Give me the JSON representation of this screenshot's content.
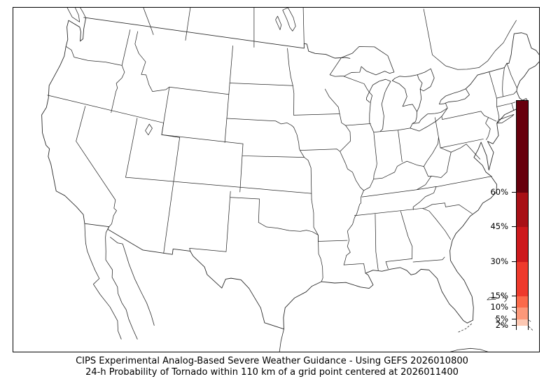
{
  "figure": {
    "caption_line1": "CIPS Experimental Analog-Based Severe Weather Guidance - Using GEFS 2026010800",
    "caption_line2": "24-h Probability of Tornado within 110 km of a grid point centered at 2026011400"
  },
  "colorbar": {
    "orientation": "vertical",
    "unit": "%",
    "value_range": [
      0,
      100
    ],
    "tick_values": [
      2,
      5,
      10,
      15,
      30,
      45,
      60
    ],
    "tick_labels": [
      "2%",
      "5%",
      "10%",
      "15%",
      "30%",
      "45%",
      "60%"
    ],
    "segments": [
      {
        "from": 0,
        "to": 2,
        "color": "#ffffff"
      },
      {
        "from": 2,
        "to": 5,
        "color": "#fcc8b3"
      },
      {
        "from": 5,
        "to": 10,
        "color": "#fc9879"
      },
      {
        "from": 10,
        "to": 15,
        "color": "#fb6a4a"
      },
      {
        "from": 15,
        "to": 30,
        "color": "#ee3a2c"
      },
      {
        "from": 30,
        "to": 45,
        "color": "#cd191c"
      },
      {
        "from": 45,
        "to": 60,
        "color": "#a81016"
      },
      {
        "from": 60,
        "to": 100,
        "color": "#67000d"
      }
    ]
  },
  "chart_data": {
    "type": "map",
    "title": "CIPS Experimental Analog-Based Severe Weather Guidance - Using GEFS 2026010800",
    "subtitle": "24-h Probability of Tornado within 110 km of a grid point centered at 2026011400",
    "region": "Contiguous United States with state borders, southern Canada, northern Mexico, Cuba and Bahamas coastlines",
    "projection": "Lambert conformal conic",
    "probability_levels_pct": [
      2,
      5,
      10,
      15,
      30,
      45,
      60
    ],
    "level_colors": [
      "#fcc8b3",
      "#fc9879",
      "#fb6a4a",
      "#ee3a2c",
      "#cd191c",
      "#a81016",
      "#67000d"
    ],
    "values_plotted": "no shaded probability areas visible (all below 2%)",
    "legend_position": "right",
    "map_fill": "#ffffff",
    "map_line_color": "#2a2a2a"
  }
}
